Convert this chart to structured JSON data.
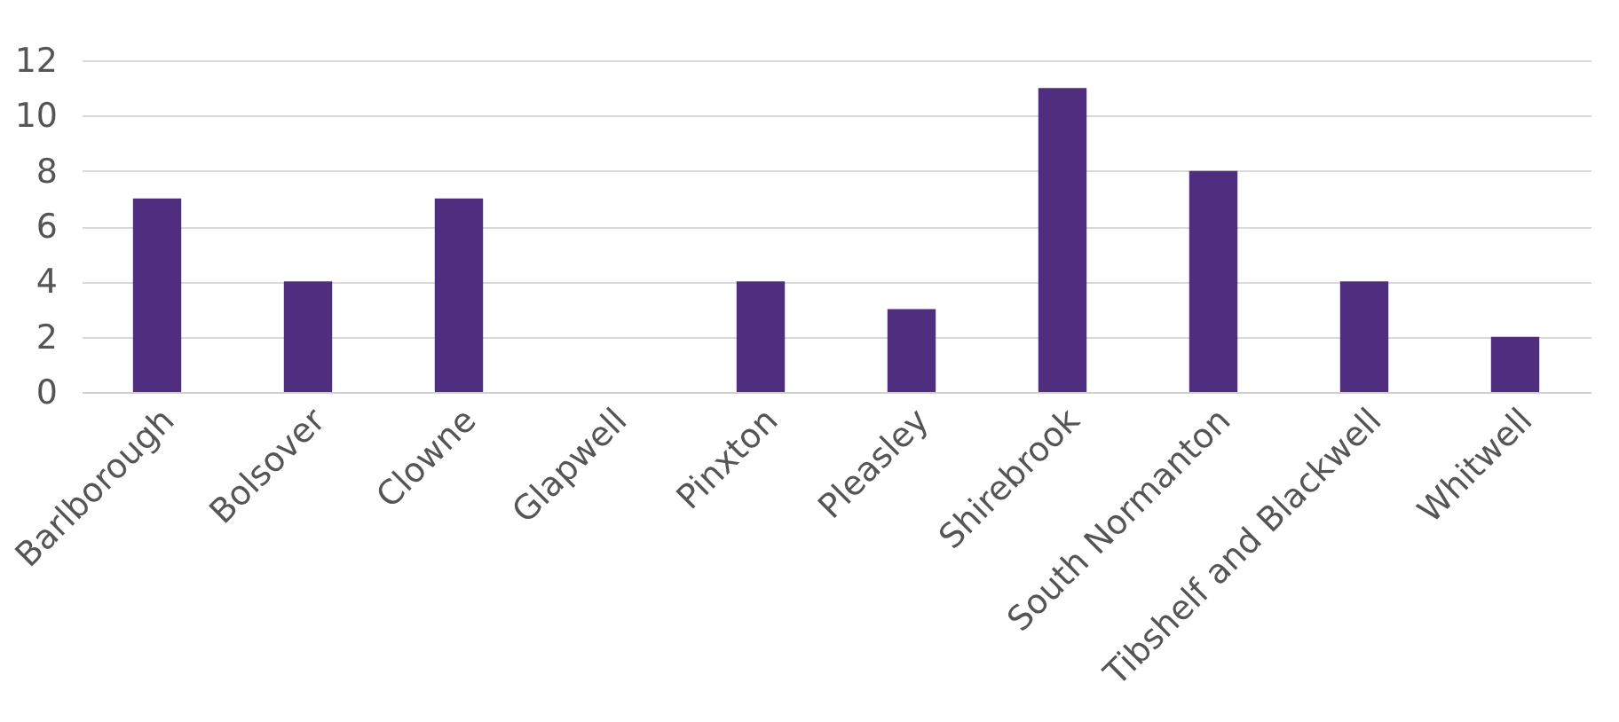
{
  "chart_data": {
    "type": "bar",
    "categories": [
      "Barlborough",
      "Bolsover",
      "Clowne",
      "Glapwell",
      "Pinxton",
      "Pleasley",
      "Shirebrook",
      "South Normanton",
      "Tibshelf and Blackwell",
      "Whitwell"
    ],
    "values": [
      7,
      4,
      7,
      0,
      4,
      3,
      11,
      8,
      4,
      2
    ],
    "color": "#4f2d7f",
    "ylim": [
      0,
      12
    ],
    "yticks": [
      0,
      2,
      4,
      6,
      8,
      10,
      12
    ],
    "grid": "y"
  }
}
